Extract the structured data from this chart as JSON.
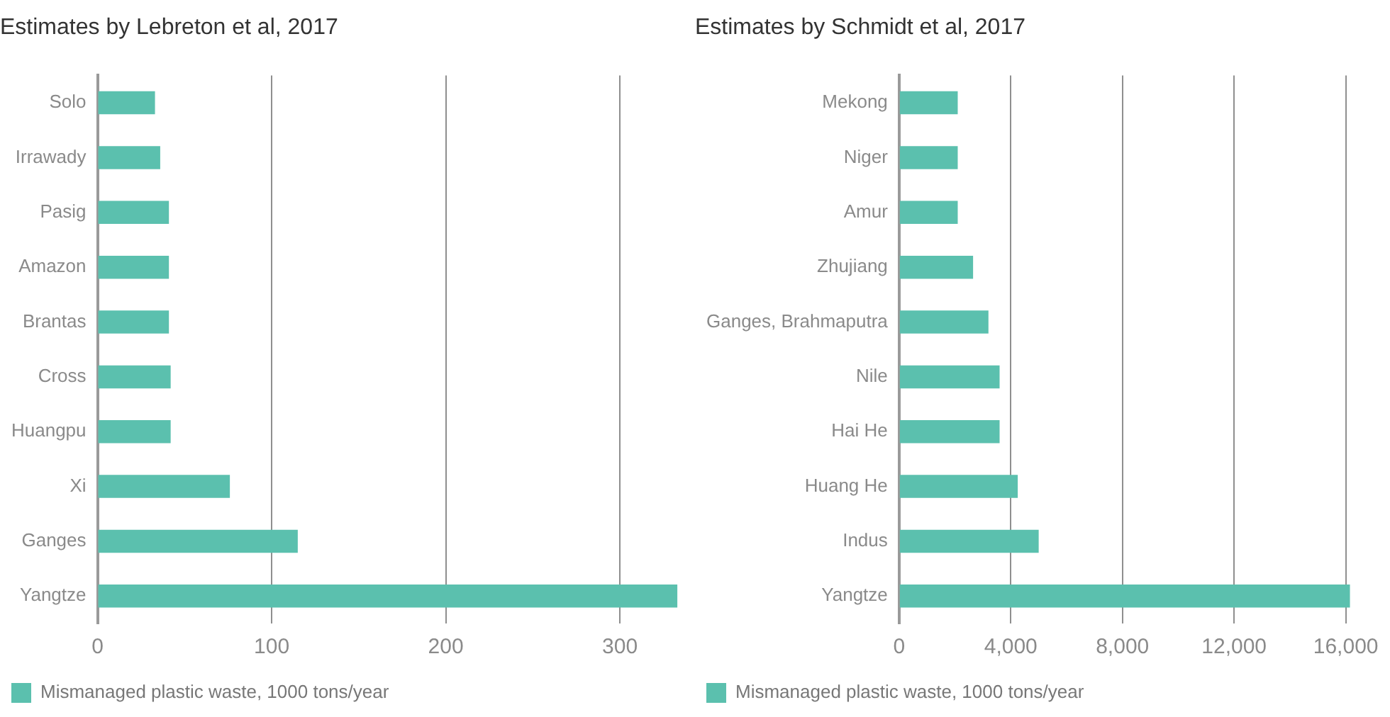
{
  "chart_data": [
    {
      "type": "bar",
      "orientation": "horizontal",
      "title": "Estimates by Lebreton et al, 2017",
      "categories": [
        "Solo",
        "Irrawady",
        "Pasig",
        "Amazon",
        "Brantas",
        "Cross",
        "Huangpu",
        "Xi",
        "Ganges",
        "Yangtze"
      ],
      "series": [
        {
          "name": "Mismanaged plastic waste, 1000 tons/year",
          "color": "#5bc0ae",
          "values": [
            33,
            36,
            41,
            41,
            41,
            42,
            42,
            76,
            115,
            333
          ]
        }
      ],
      "xlim": [
        0,
        335
      ],
      "xticks": [
        0,
        100,
        200,
        300
      ],
      "grid": "x",
      "legend": "bottom"
    },
    {
      "type": "bar",
      "orientation": "horizontal",
      "title": "Estimates by Schmidt et al, 2017",
      "categories": [
        "Mekong",
        "Niger",
        "Amur",
        "Zhujiang",
        "Ganges, Brahmaputra",
        "Nile",
        "Hai He",
        "Huang He",
        "Indus",
        "Yangtze"
      ],
      "series": [
        {
          "name": "Mismanaged plastic waste, 1000 tons/year",
          "color": "#5bc0ae",
          "values": [
            2100,
            2100,
            2100,
            2650,
            3200,
            3600,
            3600,
            4250,
            5000,
            16150
          ]
        }
      ],
      "xlim": [
        0,
        16200
      ],
      "xticks": [
        0,
        {
          "value": 4000,
          "label": "4,000"
        },
        {
          "value": 8000,
          "label": "8,000"
        },
        {
          "value": 12000,
          "label": "12,000"
        },
        {
          "value": 16000,
          "label": "16,000"
        }
      ],
      "grid": "x",
      "legend": "bottom"
    }
  ]
}
